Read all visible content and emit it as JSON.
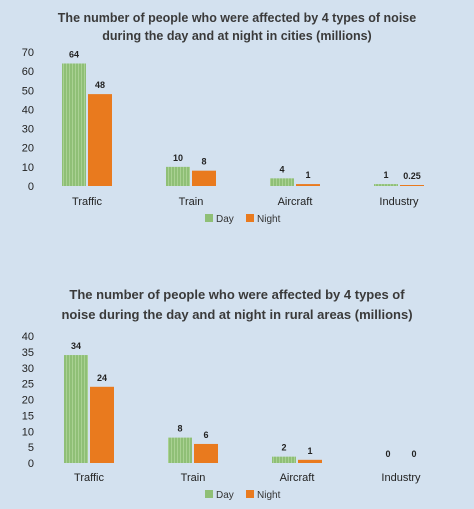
{
  "colors": {
    "background": "#d3e1ef",
    "day": "#8fbf76",
    "night": "#e97a1e",
    "text": "#222222"
  },
  "chart_data": [
    {
      "type": "bar",
      "title_lines": [
        "The number of people who were affected by 4 types of noise",
        "during the day and at night in cities (millions)"
      ],
      "categories": [
        "Traffic",
        "Train",
        "Aircraft",
        "Industry"
      ],
      "series": [
        {
          "name": "Day",
          "values": [
            64,
            10,
            4,
            1
          ]
        },
        {
          "name": "Night",
          "values": [
            48,
            8,
            1,
            0.25
          ]
        }
      ],
      "ylim": [
        0,
        70
      ],
      "yticks": [
        0,
        10,
        20,
        30,
        40,
        50,
        60,
        70
      ],
      "grid": false,
      "legend": "bottom"
    },
    {
      "type": "bar",
      "title_lines": [
        "The number of people who were affected by 4 types of",
        "noise during the day and at night in rural areas (millions)"
      ],
      "categories": [
        "Traffic",
        "Train",
        "Aircraft",
        "Industry"
      ],
      "series": [
        {
          "name": "Day",
          "values": [
            34,
            8,
            2,
            0
          ]
        },
        {
          "name": "Night",
          "values": [
            24,
            6,
            1,
            0
          ]
        }
      ],
      "ylim": [
        0,
        40
      ],
      "yticks": [
        0,
        5,
        10,
        15,
        20,
        25,
        30,
        35,
        40
      ],
      "grid": false,
      "legend": "bottom"
    }
  ]
}
